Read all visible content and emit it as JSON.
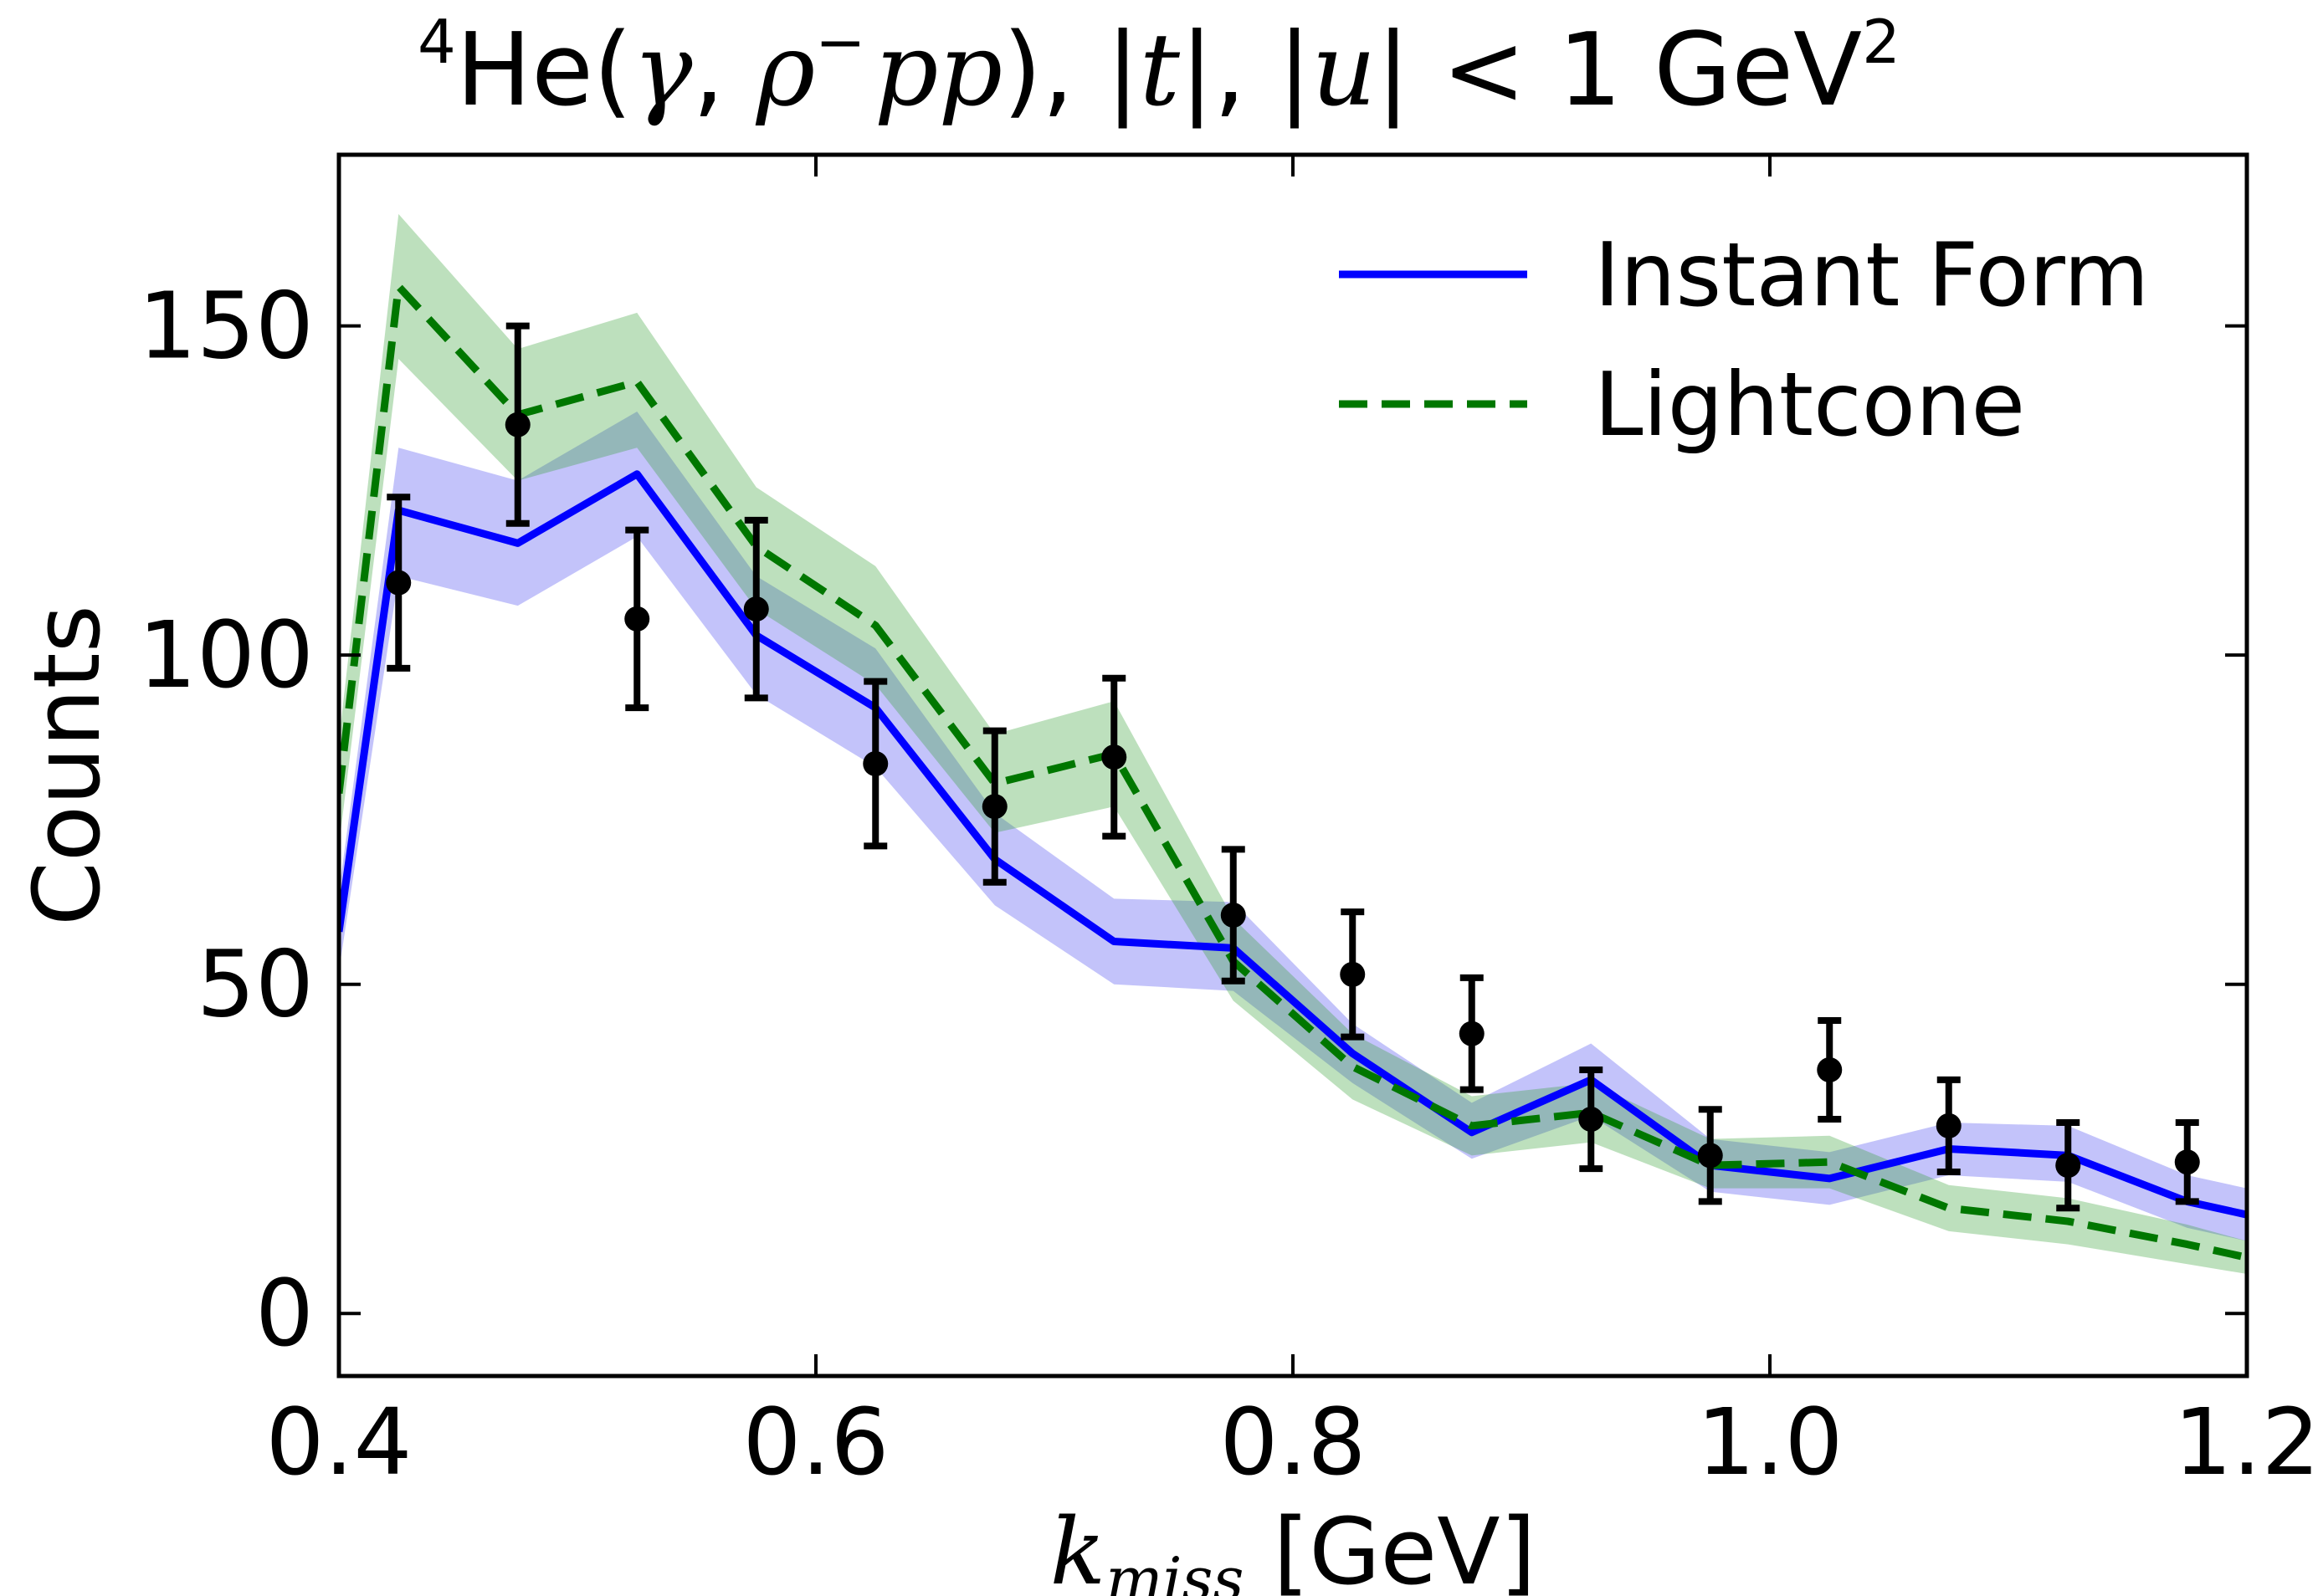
{
  "chart_data": {
    "type": "line",
    "title": {
      "sup1": "4",
      "pre": "He(",
      "gamma": "γ",
      "comma1": ", ",
      "rho": "ρ",
      "minus": "−",
      "pp": "pp",
      "mid": "), |",
      "t": "t",
      "mid2": "|, |",
      "u": "u",
      "post": "| < 1 GeV",
      "sup2": "2"
    },
    "xlabel": {
      "k": "k",
      "sub": "miss",
      "unit": " [GeV]"
    },
    "ylabel": "Counts",
    "xlim": [
      0.4,
      1.2
    ],
    "ylim": [
      -9.5,
      176
    ],
    "x_ticks": [
      {
        "value": 0.4,
        "label": "0.4"
      },
      {
        "value": 0.6,
        "label": "0.6"
      },
      {
        "value": 0.8,
        "label": "0.8"
      },
      {
        "value": 1.0,
        "label": "1.0"
      },
      {
        "value": 1.2,
        "label": "1.2"
      }
    ],
    "y_ticks": [
      {
        "value": 0,
        "label": "0"
      },
      {
        "value": 50,
        "label": "50"
      },
      {
        "value": 100,
        "label": "100"
      },
      {
        "value": 150,
        "label": "150"
      }
    ],
    "legend_position": "top-right",
    "series": [
      {
        "name": "Instant Form",
        "style": "solid",
        "color": "#0000ff",
        "band_color": "#4444ee",
        "x": [
          0.4,
          0.425,
          0.475,
          0.525,
          0.575,
          0.625,
          0.675,
          0.725,
          0.775,
          0.825,
          0.875,
          0.925,
          0.975,
          1.025,
          1.075,
          1.125,
          1.175,
          1.2
        ],
        "y": [
          58,
          122,
          117,
          127.5,
          103,
          92,
          69,
          56.5,
          55.5,
          39.5,
          27.5,
          35.5,
          22.5,
          20.5,
          25,
          24,
          17,
          15
        ],
        "band_low": [
          52,
          112,
          107.5,
          118,
          94,
          83,
          62,
          50,
          49,
          35,
          23.5,
          30,
          18.5,
          16.5,
          21,
          20,
          13,
          11
        ],
        "band_high": [
          64,
          131.5,
          126.5,
          137,
          112,
          101,
          76,
          63,
          62.5,
          44,
          32,
          41,
          26.5,
          24.5,
          29,
          28.5,
          21,
          19
        ]
      },
      {
        "name": "Lightcone",
        "style": "dashed",
        "color": "#007700",
        "band_color": "#33a033",
        "x": [
          0.4,
          0.425,
          0.475,
          0.525,
          0.575,
          0.625,
          0.675,
          0.725,
          0.775,
          0.825,
          0.875,
          0.925,
          0.975,
          1.025,
          1.075,
          1.125,
          1.175,
          1.2
        ],
        "y": [
          79,
          156,
          136.5,
          141.5,
          116.5,
          104.5,
          80.5,
          85,
          53.5,
          37.5,
          28.5,
          30.5,
          22.5,
          23,
          16,
          14,
          10.5,
          8.5
        ],
        "band_low": [
          71,
          145,
          126.5,
          131.5,
          107,
          95.5,
          73,
          77,
          47.5,
          32.5,
          24,
          26,
          19,
          19,
          12.5,
          10.5,
          7.5,
          6
        ],
        "band_high": [
          87,
          167,
          146.5,
          152,
          125.5,
          113.5,
          88,
          93,
          60,
          42.5,
          33,
          35,
          26.5,
          27,
          19.5,
          17.5,
          13.5,
          11
        ]
      }
    ],
    "data_points": {
      "name": "",
      "color": "#000000",
      "x": [
        0.425,
        0.475,
        0.525,
        0.575,
        0.625,
        0.675,
        0.725,
        0.775,
        0.825,
        0.875,
        0.925,
        0.975,
        1.025,
        1.075,
        1.125,
        1.175
      ],
      "y": [
        111,
        135,
        105.5,
        107,
        83.5,
        77,
        84.5,
        60.5,
        51.5,
        42.5,
        29.5,
        24,
        37,
        28.5,
        22.5,
        23
      ],
      "err": [
        13,
        15,
        13.5,
        13.5,
        12.5,
        11.5,
        12,
        10,
        9.5,
        8.5,
        7.5,
        7,
        7.5,
        7,
        6.5,
        6
      ]
    }
  }
}
